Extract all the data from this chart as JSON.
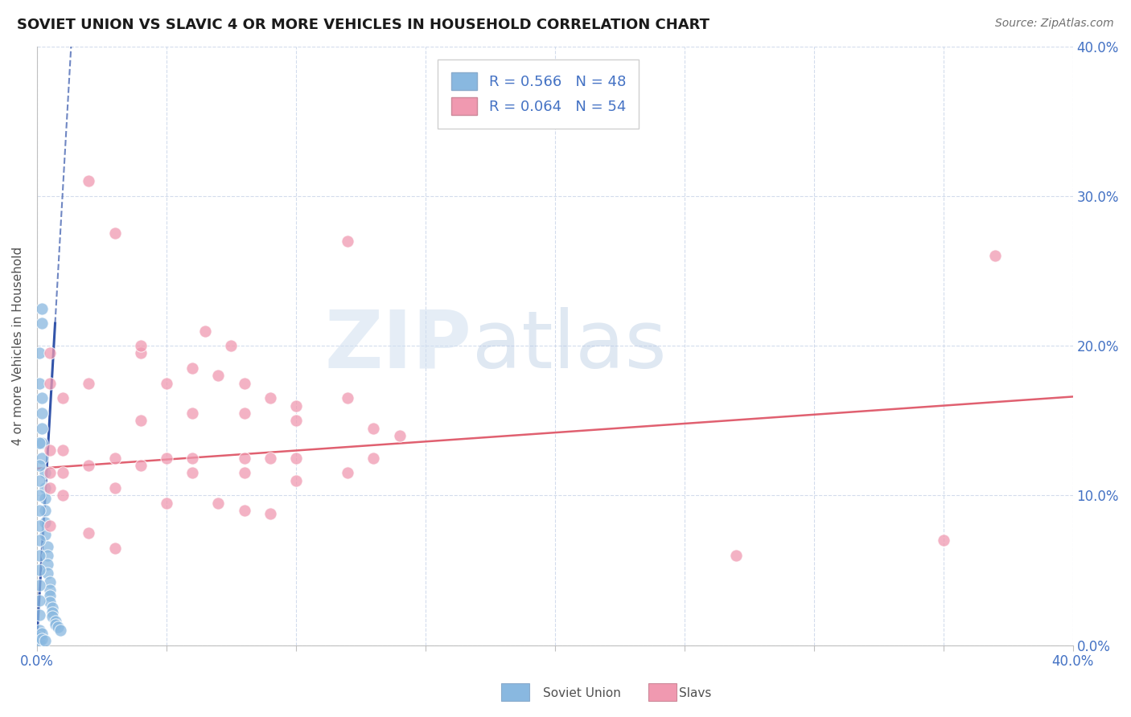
{
  "title": "SOVIET UNION VS SLAVIC 4 OR MORE VEHICLES IN HOUSEHOLD CORRELATION CHART",
  "source": "Source: ZipAtlas.com",
  "ylabel": "4 or more Vehicles in Household",
  "xmin": 0.0,
  "xmax": 0.4,
  "ymin": 0.0,
  "ymax": 0.4,
  "legend_label_soviet": "R = 0.566   N = 48",
  "legend_label_slavs": "R = 0.064   N = 54",
  "soviet_color": "#89b8e0",
  "slavs_color": "#f099b0",
  "soviet_trendline_color": "#3355aa",
  "slavs_trendline_color": "#e06070",
  "watermark_zip": "ZIP",
  "watermark_atlas": "atlas",
  "soviet_scatter": [
    [
      0.001,
      0.195
    ],
    [
      0.001,
      0.175
    ],
    [
      0.002,
      0.225
    ],
    [
      0.002,
      0.215
    ],
    [
      0.002,
      0.165
    ],
    [
      0.002,
      0.155
    ],
    [
      0.002,
      0.145
    ],
    [
      0.002,
      0.135
    ],
    [
      0.002,
      0.125
    ],
    [
      0.003,
      0.115
    ],
    [
      0.003,
      0.105
    ],
    [
      0.003,
      0.098
    ],
    [
      0.003,
      0.09
    ],
    [
      0.003,
      0.082
    ],
    [
      0.003,
      0.074
    ],
    [
      0.004,
      0.066
    ],
    [
      0.004,
      0.06
    ],
    [
      0.004,
      0.054
    ],
    [
      0.004,
      0.048
    ],
    [
      0.005,
      0.042
    ],
    [
      0.005,
      0.037
    ],
    [
      0.005,
      0.033
    ],
    [
      0.005,
      0.029
    ],
    [
      0.006,
      0.025
    ],
    [
      0.006,
      0.022
    ],
    [
      0.006,
      0.019
    ],
    [
      0.007,
      0.016
    ],
    [
      0.007,
      0.014
    ],
    [
      0.008,
      0.012
    ],
    [
      0.009,
      0.01
    ],
    [
      0.001,
      0.135
    ],
    [
      0.001,
      0.12
    ],
    [
      0.001,
      0.11
    ],
    [
      0.001,
      0.1
    ],
    [
      0.001,
      0.09
    ],
    [
      0.001,
      0.08
    ],
    [
      0.001,
      0.07
    ],
    [
      0.001,
      0.06
    ],
    [
      0.001,
      0.05
    ],
    [
      0.001,
      0.04
    ],
    [
      0.001,
      0.03
    ],
    [
      0.001,
      0.02
    ],
    [
      0.001,
      0.01
    ],
    [
      0.001,
      0.005
    ],
    [
      0.001,
      0.002
    ],
    [
      0.002,
      0.008
    ],
    [
      0.002,
      0.004
    ],
    [
      0.003,
      0.003
    ]
  ],
  "slavs_scatter": [
    [
      0.005,
      0.195
    ],
    [
      0.02,
      0.31
    ],
    [
      0.03,
      0.275
    ],
    [
      0.065,
      0.21
    ],
    [
      0.075,
      0.2
    ],
    [
      0.04,
      0.195
    ],
    [
      0.12,
      0.27
    ],
    [
      0.37,
      0.26
    ],
    [
      0.005,
      0.175
    ],
    [
      0.01,
      0.165
    ],
    [
      0.02,
      0.175
    ],
    [
      0.04,
      0.2
    ],
    [
      0.06,
      0.185
    ],
    [
      0.08,
      0.175
    ],
    [
      0.05,
      0.175
    ],
    [
      0.07,
      0.18
    ],
    [
      0.09,
      0.165
    ],
    [
      0.1,
      0.16
    ],
    [
      0.12,
      0.165
    ],
    [
      0.08,
      0.155
    ],
    [
      0.06,
      0.155
    ],
    [
      0.1,
      0.15
    ],
    [
      0.04,
      0.15
    ],
    [
      0.13,
      0.145
    ],
    [
      0.14,
      0.14
    ],
    [
      0.005,
      0.13
    ],
    [
      0.01,
      0.13
    ],
    [
      0.03,
      0.125
    ],
    [
      0.05,
      0.125
    ],
    [
      0.06,
      0.125
    ],
    [
      0.08,
      0.125
    ],
    [
      0.09,
      0.125
    ],
    [
      0.1,
      0.125
    ],
    [
      0.13,
      0.125
    ],
    [
      0.005,
      0.115
    ],
    [
      0.01,
      0.115
    ],
    [
      0.02,
      0.12
    ],
    [
      0.04,
      0.12
    ],
    [
      0.06,
      0.115
    ],
    [
      0.08,
      0.115
    ],
    [
      0.1,
      0.11
    ],
    [
      0.12,
      0.115
    ],
    [
      0.005,
      0.105
    ],
    [
      0.01,
      0.1
    ],
    [
      0.03,
      0.105
    ],
    [
      0.05,
      0.095
    ],
    [
      0.07,
      0.095
    ],
    [
      0.08,
      0.09
    ],
    [
      0.09,
      0.088
    ],
    [
      0.005,
      0.08
    ],
    [
      0.02,
      0.075
    ],
    [
      0.03,
      0.065
    ],
    [
      0.27,
      0.06
    ],
    [
      0.35,
      0.07
    ]
  ],
  "soviet_trend_slope": 30.0,
  "soviet_trend_intercept": 0.005,
  "soviet_trend_x_solid_start": 0.0,
  "soviet_trend_x_solid_end": 0.007,
  "soviet_trend_x_dash_start": 0.007,
  "soviet_trend_x_dash_end": 0.055,
  "slavs_trend_slope": 0.12,
  "slavs_trend_intercept": 0.118,
  "slavs_trend_x_start": 0.0,
  "slavs_trend_x_end": 0.4
}
